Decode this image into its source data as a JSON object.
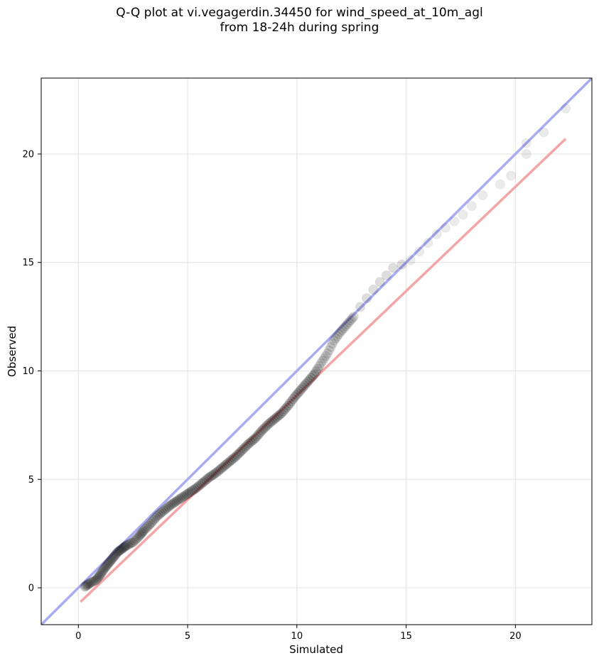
{
  "chart_data": {
    "type": "scatter",
    "title_line1": "Q-Q plot at vi.vegagerdin.34450 for wind_speed_at_10m_agl",
    "title_line2": "from 18-24h during spring",
    "xlabel": "Simulated",
    "ylabel": "Observed",
    "xlim": [
      -1.7,
      23.5
    ],
    "ylim": [
      -1.7,
      23.5
    ],
    "xticks": [
      0,
      5,
      10,
      15,
      20
    ],
    "yticks": [
      0,
      5,
      10,
      15,
      20
    ],
    "grid": true,
    "reference_line": {
      "name": "",
      "x": [
        -1.7,
        23.5
      ],
      "y": [
        -1.7,
        23.5
      ],
      "color": "#a8acf2"
    },
    "fit_line": {
      "name": "",
      "x": [
        0.1,
        22.3
      ],
      "y": [
        -0.65,
        20.7
      ],
      "color": "#f4a6a6"
    },
    "points_color": "#000000",
    "quantiles": {
      "x": [
        0.3,
        0.5,
        0.8,
        1.0,
        1.2,
        1.4,
        1.6,
        1.8,
        2.0,
        2.2,
        2.5,
        2.8,
        3.0,
        3.3,
        3.6,
        3.9,
        4.2,
        4.5,
        4.8,
        5.1,
        5.4,
        5.7,
        6.0,
        6.3,
        6.6,
        6.9,
        7.2,
        7.5,
        7.8,
        8.1,
        8.4,
        8.7,
        9.0,
        9.3,
        9.6,
        9.9,
        10.2,
        10.5,
        10.8,
        11.1,
        11.4,
        11.7,
        12.0,
        12.3,
        12.6,
        12.9,
        13.2,
        13.5,
        13.8,
        14.1,
        14.4,
        14.8,
        15.2,
        15.6,
        16.0,
        16.4,
        16.8,
        17.2,
        17.6,
        18.0,
        18.5,
        19.3,
        19.8,
        20.5,
        20.5,
        21.3,
        22.3
      ],
      "y": [
        0.05,
        0.2,
        0.35,
        0.6,
        0.9,
        1.15,
        1.4,
        1.65,
        1.8,
        1.95,
        2.1,
        2.4,
        2.65,
        2.95,
        3.3,
        3.55,
        3.8,
        4.0,
        4.2,
        4.4,
        4.6,
        4.85,
        5.1,
        5.3,
        5.55,
        5.8,
        6.05,
        6.35,
        6.65,
        6.9,
        7.25,
        7.55,
        7.8,
        8.05,
        8.4,
        8.8,
        9.15,
        9.5,
        9.85,
        10.35,
        10.8,
        11.4,
        11.8,
        12.15,
        12.5,
        12.95,
        13.35,
        13.75,
        14.1,
        14.4,
        14.75,
        14.9,
        15.1,
        15.5,
        15.9,
        16.3,
        16.6,
        16.9,
        17.2,
        17.6,
        18.1,
        18.6,
        19.0,
        20.0,
        20.5,
        21.0,
        22.1
      ]
    }
  }
}
